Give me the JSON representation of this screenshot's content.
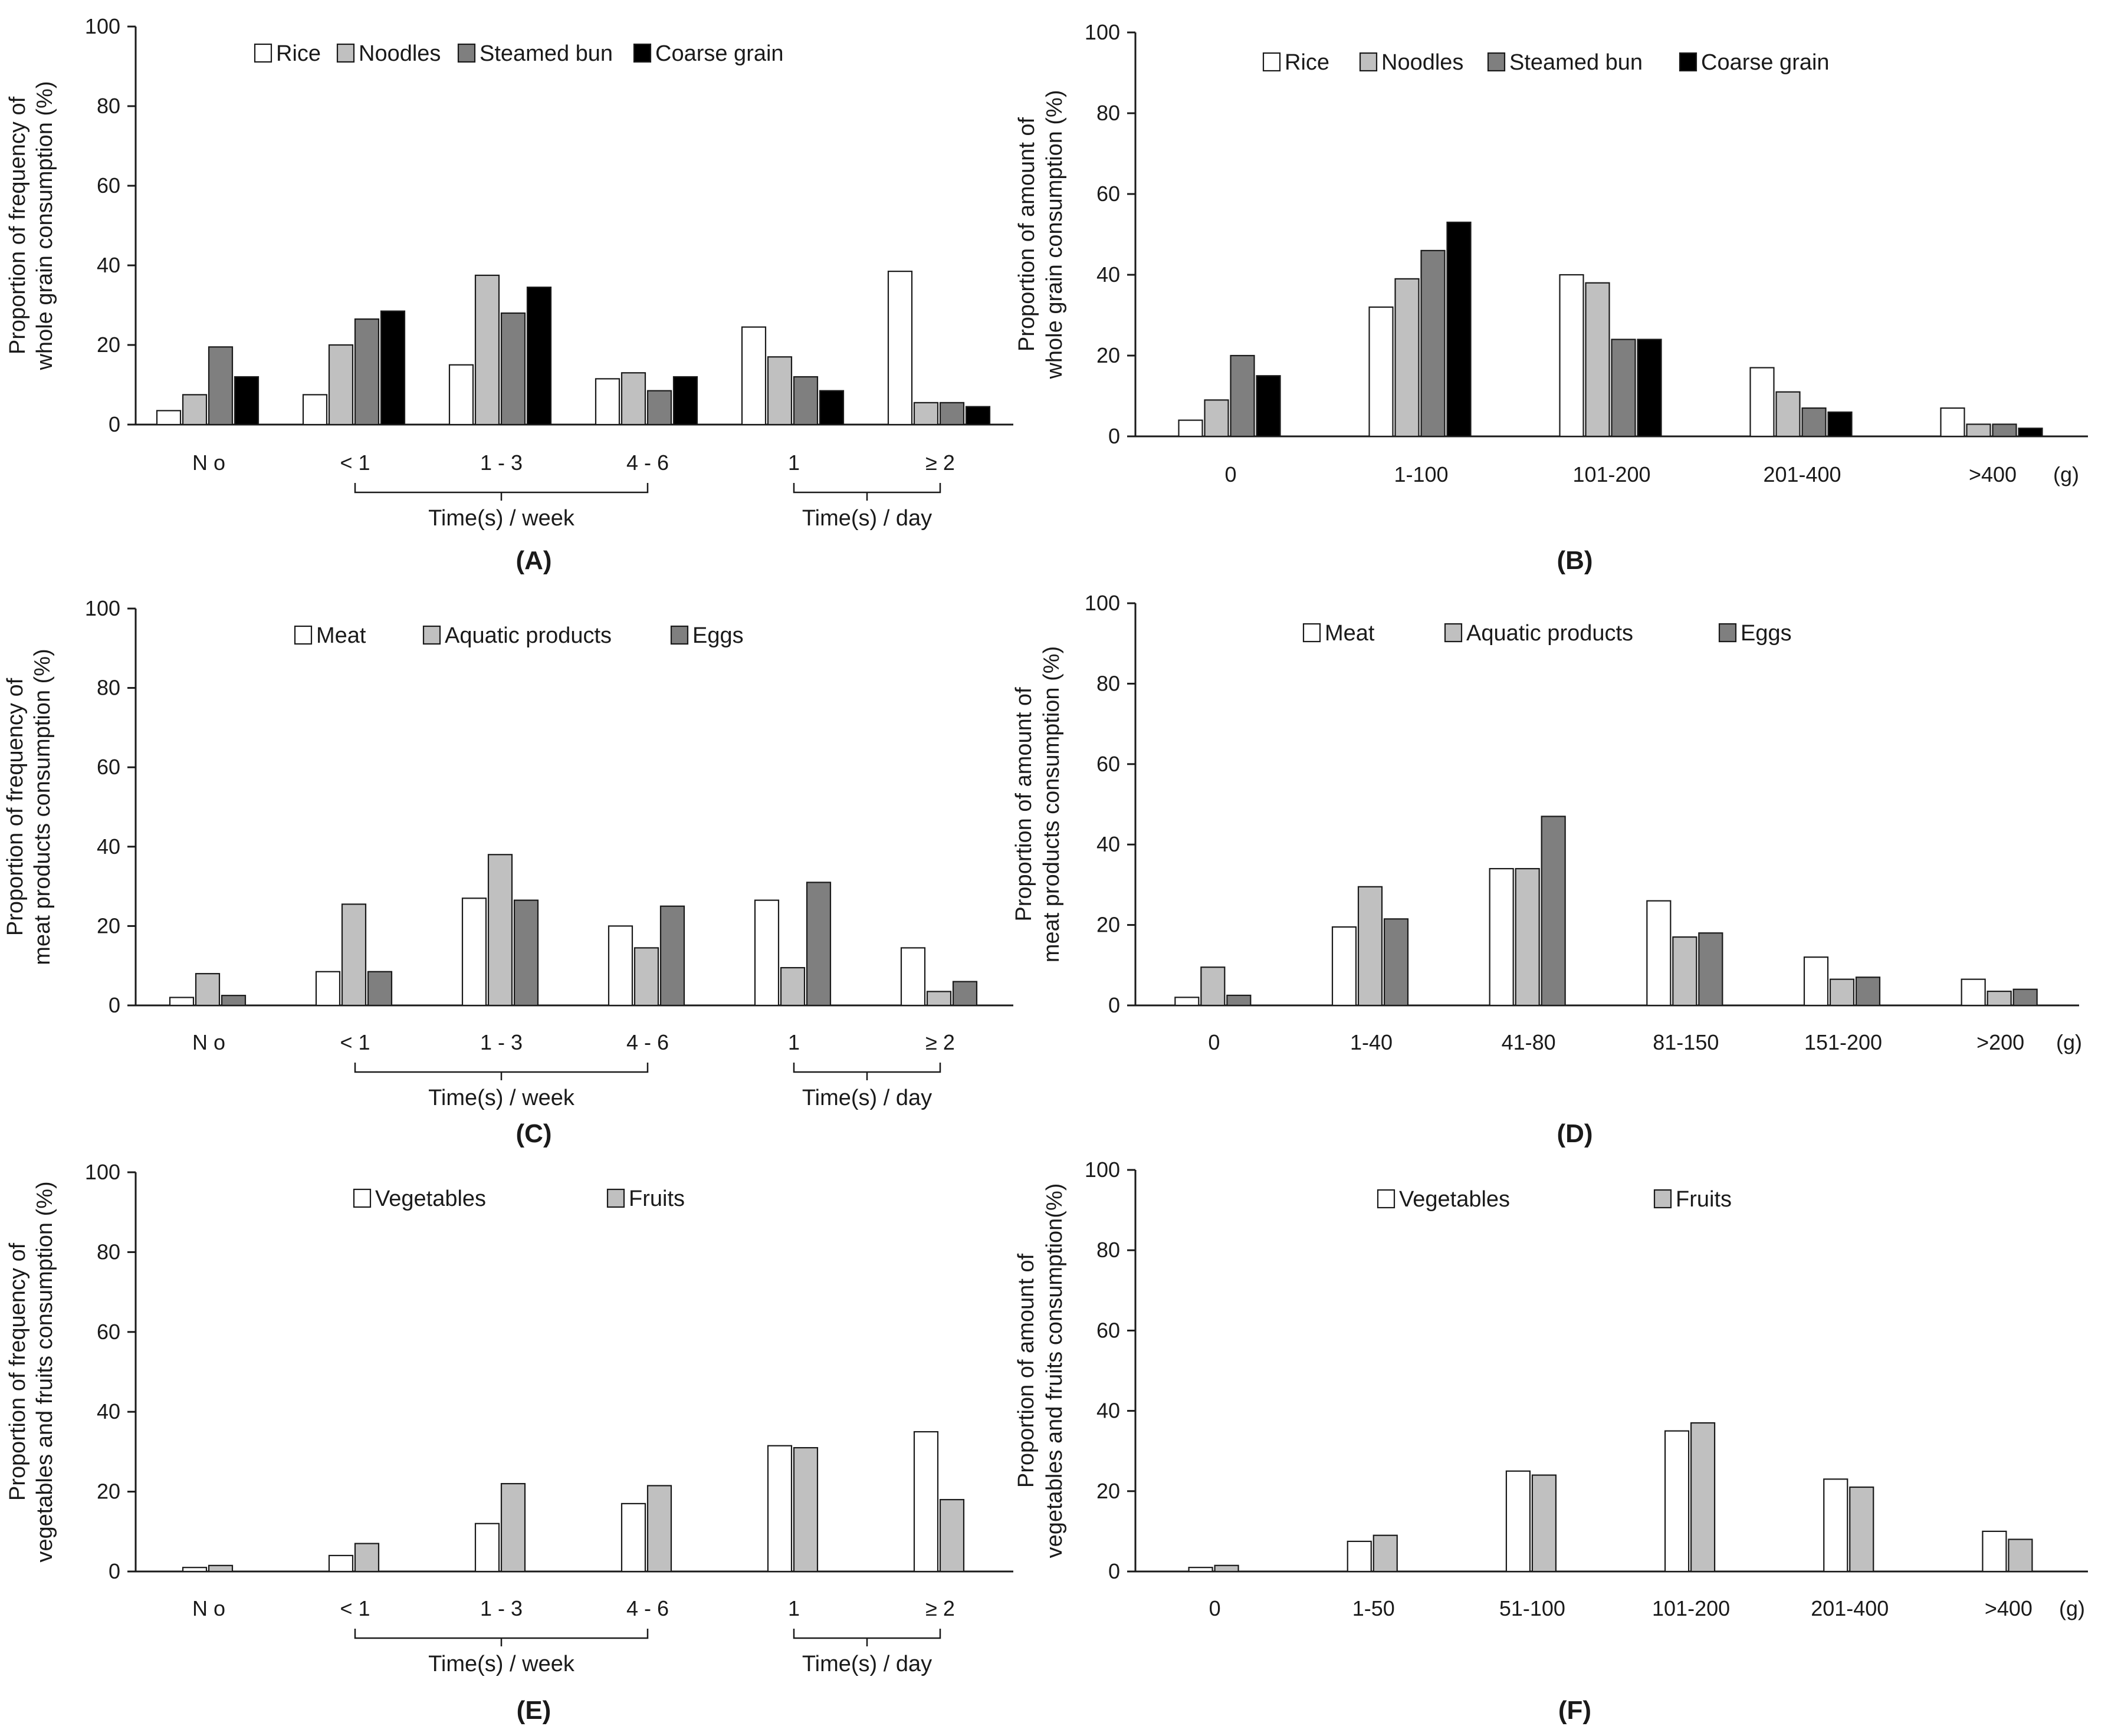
{
  "figure": {
    "colors": {
      "white": "#ffffff",
      "light_gray": "#c0c0c0",
      "dark_gray": "#7f7f7f",
      "black": "#000000",
      "outline": "#1a1a1a"
    }
  },
  "chart_data": [
    {
      "id": "A",
      "panel_label": "(A)",
      "type": "bar",
      "ylabel": [
        "Proportion of frequency of",
        "whole grain consumption (%)"
      ],
      "ylim": [
        0,
        100
      ],
      "yticks": [
        0,
        20,
        40,
        60,
        80,
        100
      ],
      "categories": [
        "N o",
        "< 1",
        "1 - 3",
        "4 - 6",
        "1",
        "≥ 2"
      ],
      "unit": "",
      "groups": [
        {
          "label": "Time(s) / week",
          "from": 1,
          "to": 3
        },
        {
          "label": "Time(s) / day",
          "from": 4,
          "to": 5
        }
      ],
      "series": [
        {
          "name": "Rice",
          "color": "#ffffff",
          "values": [
            3.5,
            7.5,
            15,
            11.5,
            24.5,
            38.5
          ]
        },
        {
          "name": "Noodles",
          "color": "#c0c0c0",
          "values": [
            7.5,
            20,
            37.5,
            13,
            17,
            5.5
          ]
        },
        {
          "name": "Steamed bun",
          "color": "#7f7f7f",
          "values": [
            19.5,
            26.5,
            28,
            8.5,
            12,
            5.5
          ]
        },
        {
          "name": "Coarse grain",
          "color": "#000000",
          "values": [
            12,
            28.5,
            34.5,
            12,
            8.5,
            4.5
          ]
        }
      ]
    },
    {
      "id": "B",
      "panel_label": "(B)",
      "type": "bar",
      "ylabel": [
        "Proportion of amount of",
        "whole grain consumption (%)"
      ],
      "ylim": [
        0,
        100
      ],
      "yticks": [
        0,
        20,
        40,
        60,
        80,
        100
      ],
      "categories": [
        "0",
        "1-100",
        "101-200",
        "201-400",
        ">400"
      ],
      "unit": "(g)",
      "groups": [],
      "series": [
        {
          "name": "Rice",
          "color": "#ffffff",
          "values": [
            4,
            32,
            40,
            17,
            7
          ]
        },
        {
          "name": "Noodles",
          "color": "#c0c0c0",
          "values": [
            9,
            39,
            38,
            11,
            3
          ]
        },
        {
          "name": "Steamed bun",
          "color": "#7f7f7f",
          "values": [
            20,
            46,
            24,
            7,
            3
          ]
        },
        {
          "name": "Coarse grain",
          "color": "#000000",
          "values": [
            15,
            53,
            24,
            6,
            2
          ]
        }
      ]
    },
    {
      "id": "C",
      "panel_label": "(C)",
      "type": "bar",
      "ylabel": [
        "Proportion of frequency of",
        "meat products consumption (%)"
      ],
      "ylim": [
        0,
        100
      ],
      "yticks": [
        0,
        20,
        40,
        60,
        80,
        100
      ],
      "categories": [
        "N o",
        "< 1",
        "1 - 3",
        "4 - 6",
        "1",
        "≥ 2"
      ],
      "unit": "",
      "groups": [
        {
          "label": "Time(s) / week",
          "from": 1,
          "to": 3
        },
        {
          "label": "Time(s) / day",
          "from": 4,
          "to": 5
        }
      ],
      "series": [
        {
          "name": "Meat",
          "color": "#ffffff",
          "values": [
            2,
            8.5,
            27,
            20,
            26.5,
            14.5
          ]
        },
        {
          "name": "Aquatic products",
          "color": "#c0c0c0",
          "values": [
            8,
            25.5,
            38,
            14.5,
            9.5,
            3.5
          ]
        },
        {
          "name": "Eggs",
          "color": "#7f7f7f",
          "values": [
            2.5,
            8.5,
            26.5,
            25,
            31,
            6
          ]
        }
      ]
    },
    {
      "id": "D",
      "panel_label": "(D)",
      "type": "bar",
      "ylabel": [
        "Proportion of amount of",
        "meat products consumption (%)"
      ],
      "ylim": [
        0,
        100
      ],
      "yticks": [
        0,
        20,
        40,
        60,
        80,
        100
      ],
      "categories": [
        "0",
        "1-40",
        "41-80",
        "81-150",
        "151-200",
        ">200"
      ],
      "unit": "(g)",
      "groups": [],
      "series": [
        {
          "name": "Meat",
          "color": "#ffffff",
          "values": [
            2,
            19.5,
            34,
            26,
            12,
            6.5
          ]
        },
        {
          "name": "Aquatic products",
          "color": "#c0c0c0",
          "values": [
            9.5,
            29.5,
            34,
            17,
            6.5,
            3.5
          ]
        },
        {
          "name": "Eggs",
          "color": "#7f7f7f",
          "values": [
            2.5,
            21.5,
            47,
            18,
            7,
            4
          ]
        }
      ]
    },
    {
      "id": "E",
      "panel_label": "(E)",
      "type": "bar",
      "ylabel": [
        "Proportion of frequency of",
        "vegetables and fruits consumption (%)"
      ],
      "ylim": [
        0,
        100
      ],
      "yticks": [
        0,
        20,
        40,
        60,
        80,
        100
      ],
      "categories": [
        "N o",
        "< 1",
        "1 - 3",
        "4 - 6",
        "1",
        "≥ 2"
      ],
      "unit": "",
      "groups": [
        {
          "label": "Time(s) / week",
          "from": 1,
          "to": 3
        },
        {
          "label": "Time(s) / day",
          "from": 4,
          "to": 5
        }
      ],
      "series": [
        {
          "name": "Vegetables",
          "color": "#ffffff",
          "values": [
            1,
            4,
            12,
            17,
            31.5,
            35
          ]
        },
        {
          "name": "Fruits",
          "color": "#c0c0c0",
          "values": [
            1.5,
            7,
            22,
            21.5,
            31,
            18
          ]
        }
      ]
    },
    {
      "id": "F",
      "panel_label": "(F)",
      "type": "bar",
      "ylabel": [
        "Proportion of amount of",
        "vegetables and fruits consumption(%)"
      ],
      "ylim": [
        0,
        100
      ],
      "yticks": [
        0,
        20,
        40,
        60,
        80,
        100
      ],
      "categories": [
        "0",
        "1-50",
        "51-100",
        "101-200",
        "201-400",
        ">400"
      ],
      "unit": "(g)",
      "groups": [],
      "series": [
        {
          "name": "Vegetables",
          "color": "#ffffff",
          "values": [
            1,
            7.5,
            25,
            35,
            23,
            10
          ]
        },
        {
          "name": "Fruits",
          "color": "#c0c0c0",
          "values": [
            1.5,
            9,
            24,
            37,
            21,
            8
          ]
        }
      ]
    }
  ]
}
